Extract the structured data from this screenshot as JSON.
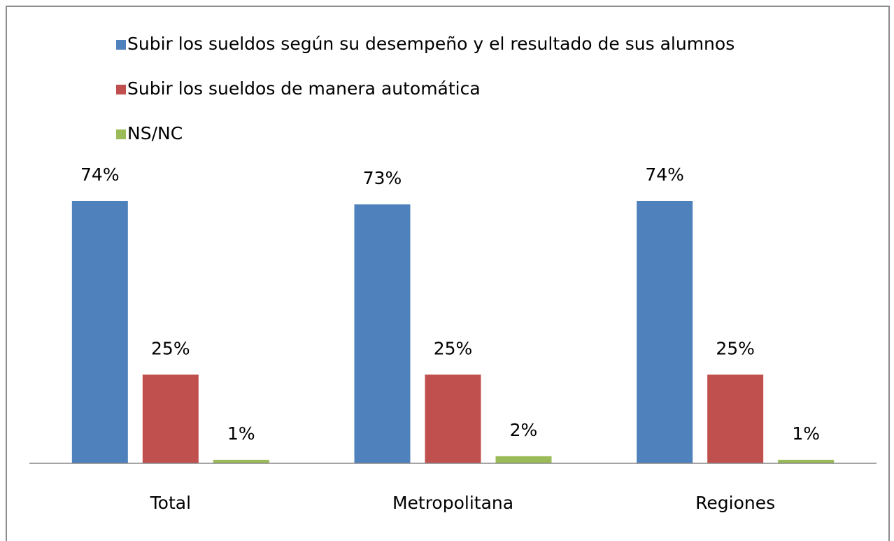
{
  "chart_data": {
    "type": "bar",
    "categories": [
      "Total",
      "Metropolitana",
      "Regiones"
    ],
    "series": [
      {
        "name": "Subir los sueldos según su desempeño y el resultado de sus alumnos",
        "color": "#4f81bd",
        "values": [
          74,
          73,
          74
        ],
        "value_labels": [
          "74%",
          "73%",
          "74%"
        ]
      },
      {
        "name": "Subir los sueldos de manera automática",
        "color": "#c0504d",
        "values": [
          25,
          25,
          25
        ],
        "value_labels": [
          "25%",
          "25%",
          "25%"
        ]
      },
      {
        "name": "NS/NC",
        "color": "#9bbb59",
        "values": [
          1,
          2,
          1
        ],
        "value_labels": [
          "1%",
          "2%",
          "1%"
        ]
      }
    ],
    "legend": "top"
  }
}
